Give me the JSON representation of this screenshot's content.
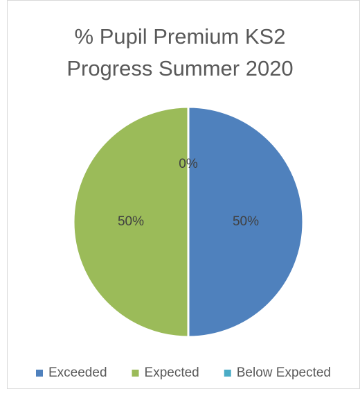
{
  "chart_data": {
    "type": "pie",
    "title": "% Pupil Premium KS2 Progress Summer 2020",
    "categories": [
      "Exceeded",
      "Expected",
      "Below Expected"
    ],
    "values": [
      50,
      50,
      0
    ],
    "value_labels": [
      "50%",
      "50%",
      "0%"
    ],
    "colors": [
      "#4f81bd",
      "#9bbb59",
      "#4bacc6"
    ],
    "legend": "bottom"
  }
}
